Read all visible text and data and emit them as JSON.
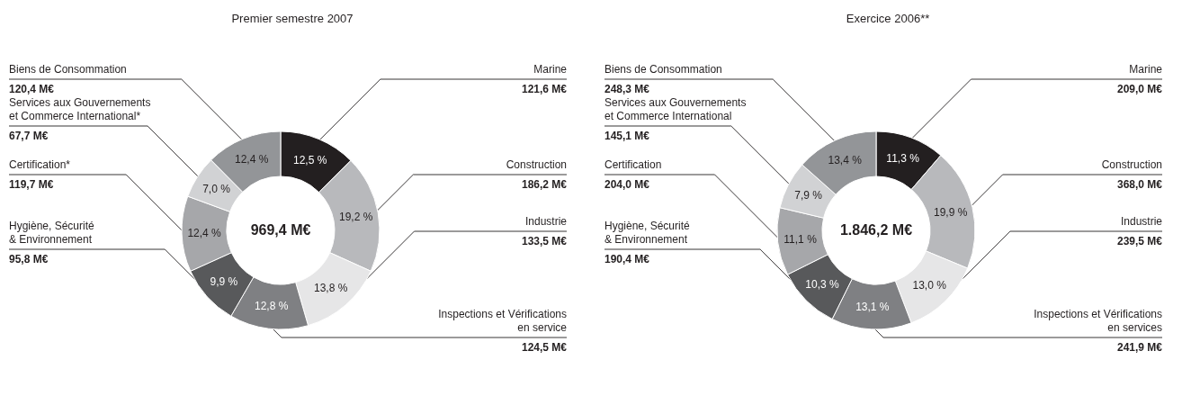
{
  "chart_data": [
    {
      "type": "donut",
      "title": "Premier semestre 2007",
      "categories": [
        "Marine",
        "Construction",
        "Industrie",
        "Inspections et Vérifications\nen service",
        "Hygiène, Sécurité\n& Environnement",
        "Certification*",
        "Services aux Gouvernements\net Commerce International*",
        "Biens de Consommation"
      ],
      "values": [
        121.6,
        186.2,
        133.5,
        124.5,
        95.8,
        119.7,
        67.7,
        120.4
      ],
      "value_labels": [
        "121,6 M€",
        "186,2 M€",
        "133,5 M€",
        "124,5 M€",
        "95,8 M€",
        "119,7 M€",
        "67,7 M€",
        "120,4 M€"
      ],
      "colors": [
        "#231f20",
        "#b8b9bc",
        "#e6e6e7",
        "#7f8083",
        "#58595b",
        "#a6a7aa",
        "#d1d2d4",
        "#939598"
      ],
      "annotations": [
        {
          "text": "12,5 %",
          "x": "Marine"
        },
        {
          "text": "19,2 %",
          "x": "Construction"
        },
        {
          "text": "13,8 %",
          "x": "Industrie"
        },
        {
          "text": "12,8 %",
          "x": "Inspections et Vérifications\nen service"
        },
        {
          "text": "9,9 %",
          "x": "Hygiène, Sécurité\n& Environnement"
        },
        {
          "text": "12,4 %",
          "x": "Certification*"
        },
        {
          "text": "7,0 %",
          "x": "Services aux Gouvernements\net Commerce International*"
        },
        {
          "text": "12,4 %",
          "x": "Biens de Consommation"
        },
        "969,4 M€"
      ]
    },
    {
      "type": "donut",
      "title": "Exercice 2006**",
      "categories": [
        "Marine",
        "Construction",
        "Industrie",
        "Inspections et Vérifications\nen services",
        "Hygiène, Sécurité\n& Environnement",
        "Certification",
        "Services aux Gouvernements\net Commerce International",
        "Biens de Consommation"
      ],
      "values": [
        209.0,
        368.0,
        239.5,
        241.9,
        190.4,
        204.0,
        145.1,
        248.3
      ],
      "value_labels": [
        "209,0 M€",
        "368,0 M€",
        "239,5 M€",
        "241,9 M€",
        "190,4 M€",
        "204,0 M€",
        "145,1 M€",
        "248,3 M€"
      ],
      "colors": [
        "#231f20",
        "#b8b9bc",
        "#e6e6e7",
        "#7f8083",
        "#58595b",
        "#a6a7aa",
        "#d1d2d4",
        "#939598"
      ],
      "annotations": [
        {
          "text": "11,3 %",
          "x": "Marine"
        },
        {
          "text": "19,9 %",
          "x": "Construction"
        },
        {
          "text": "13,0 %",
          "x": "Industrie"
        },
        {
          "text": "13,1 %",
          "x": "Inspections et Vérifications\nen services"
        },
        {
          "text": "10,3 %",
          "x": "Hygiène, Sécurité\n& Environnement"
        },
        {
          "text": "11,1 %",
          "x": "Certification"
        },
        {
          "text": "7,9 %",
          "x": "Services aux Gouvernements\net Commerce International"
        },
        {
          "text": "13,4 %",
          "x": "Biens de Consommation"
        },
        "1.846,2 M€"
      ]
    }
  ]
}
